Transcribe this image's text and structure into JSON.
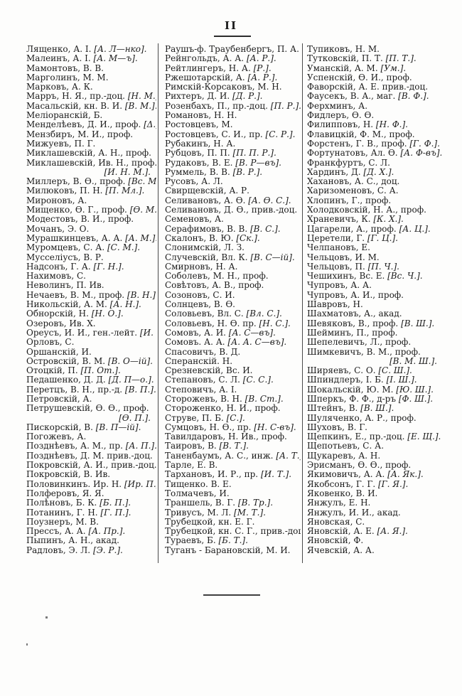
{
  "page": {
    "header": "II",
    "columns": [
      {
        "entries": [
          {
            "t": "Лященко, А. І. ",
            "b": "[А. Л—нко]."
          },
          {
            "t": "Малеинъ, А. І. ",
            "b": "[А. М—ъ]."
          },
          {
            "t": "Мамонтовъ, В. В."
          },
          {
            "t": "Марголинъ, М. М."
          },
          {
            "t": "Марковъ, А. К."
          },
          {
            "t": "Марръ, Н. Я., пр.-доц. ",
            "b": "[Н. М.]."
          },
          {
            "t": "Масальскій, кн. В. И. ",
            "b": "[В. М.]."
          },
          {
            "t": "Меліоранскій, Б."
          },
          {
            "t": "Менделѣевъ, Д. И., проф. ",
            "b": "[Δ.]."
          },
          {
            "t": "Мензбиръ, М. И., проф."
          },
          {
            "t": "Мижуевъ, П. Г."
          },
          {
            "t": "Миклашевскій, А. Н., проф."
          },
          {
            "t": "Миклашевскій, Ив. Н., проф."
          },
          {
            "t": "",
            "b": "[И. Н. М.].",
            "r": true
          },
          {
            "t": "Миллеръ, В. Ѳ., проф. ",
            "b": "[Вс. М.]."
          },
          {
            "t": "Милюковъ, П. Н. ",
            "b": "[П. Мл.]."
          },
          {
            "t": "Мироновъ, А."
          },
          {
            "t": "Мищенко, Ѳ. Г., проф. ",
            "b": "[Ѳ. М.]."
          },
          {
            "t": "Модестовъ, В. И., проф."
          },
          {
            "t": "Мочанъ, Э. О."
          },
          {
            "t": "Мурашкинцевъ, А. А. ",
            "b": "[А. М.]."
          },
          {
            "t": "Муромцевъ, С. А. ",
            "b": "[С. М.]."
          },
          {
            "t": "Мусселіусъ, В. Р."
          },
          {
            "t": "Надсонъ, Г. А. ",
            "b": "[Г. Н.]."
          },
          {
            "t": "Нахимовъ, С."
          },
          {
            "t": "Неволинъ, П. Ив."
          },
          {
            "t": "Нечаевъ, В. М., проф. ",
            "b": "[В. Н.]."
          },
          {
            "t": "Никольскій, А. М. ",
            "b": "[А. Н.]."
          },
          {
            "t": "Обнорскій, Н. ",
            "b": "[Н. О.]."
          },
          {
            "t": "Озеровъ, Ив. Х."
          },
          {
            "t": "Ореусъ, И. И., ген.-лейт. ",
            "b": "[И. О.]."
          },
          {
            "t": "Орловъ, С."
          },
          {
            "t": "Оршанскій, И."
          },
          {
            "t": "Островскій, В. М. ",
            "b": "[В. О—ій]."
          },
          {
            "t": "Отоцкій, П. ",
            "b": "[П. От.]."
          },
          {
            "t": "Педашенко, Д. Д. ",
            "b": "[Д. П—о.]."
          },
          {
            "t": "Перетцъ, В. Н., пр.-д. ",
            "b": "[В. П.]."
          },
          {
            "t": "Петровскій, А."
          },
          {
            "t": "Петрушевскій, Ѳ. Ѳ., проф."
          },
          {
            "t": "",
            "b": "[Ѳ. П.].",
            "r": true
          },
          {
            "t": "Пискорскій, В. ",
            "b": "[В. П—ій]."
          },
          {
            "t": "Погожевъ, А."
          },
          {
            "t": "Позднѣевъ, А. М., пр. ",
            "b": "[А. П.]."
          },
          {
            "t": "Позднѣевъ, Д. М. прив.-доц."
          },
          {
            "t": "Покровскій, А. И., прив.-доц."
          },
          {
            "t": "Покровскій, В. Ив."
          },
          {
            "t": "Половинкинъ. Ир. Н. ",
            "b": "[Ир. П.]."
          },
          {
            "t": "Полферовъ, Я. Я."
          },
          {
            "t": "Полѣновъ, Б. К. ",
            "b": "[Б. П.]."
          },
          {
            "t": "Потанинъ, Г. Н. ",
            "b": "[Г. П.]."
          },
          {
            "t": "Поузнеръ, М. В."
          },
          {
            "t": "Прессъ, А. А. ",
            "b": "[А. Пр.]."
          },
          {
            "t": "Пыпинъ, А. Н., акад."
          },
          {
            "t": "Радловъ, Э. Л. ",
            "b": "[Э. Р.]."
          }
        ]
      },
      {
        "entries": [
          {
            "t": "Раушъ-ф. Траубенбергъ, П. А."
          },
          {
            "t": "Рейнгольдъ, А. А. ",
            "b": "[А. Р.]."
          },
          {
            "t": "Рейтлингеръ, Н. А. ",
            "b": "[Р.]."
          },
          {
            "t": "Ржешотарскій, А. ",
            "b": "[А. Р.]."
          },
          {
            "t": "Римскій-Корсаковъ, М. Н."
          },
          {
            "t": "Рихтеръ, Д. И. ",
            "b": "[Д. Р.]."
          },
          {
            "t": "Розенбахъ, П., пр.-доц. ",
            "b": "[П. Р.]."
          },
          {
            "t": "Романовъ, Н. Н."
          },
          {
            "t": "Ростовцевъ, М."
          },
          {
            "t": "Ростовцевъ, С. И., пр. ",
            "b": "[С. Р.]."
          },
          {
            "t": "Рубакинъ, Н. А."
          },
          {
            "t": "Рубцовъ, П. П. ",
            "b": "[П. П. Р.]."
          },
          {
            "t": "Рудаковъ, В. Е. ",
            "b": "[В. Р—въ]."
          },
          {
            "t": "Руммель, В. В. ",
            "b": "[В. Р.]."
          },
          {
            "t": "Русовъ, А. Л."
          },
          {
            "t": "Свирщевскій, А. Р."
          },
          {
            "t": "Селивановъ, А. Ѳ. ",
            "b": "[А. Ѳ. С.]."
          },
          {
            "t": "Селивановъ, Д. Ѳ., прив.-доц."
          },
          {
            "t": "Семеновъ, А."
          },
          {
            "t": "Серафимовъ, В. В. ",
            "b": "[В. С.]."
          },
          {
            "t": "Скалонъ, В. Ю. ",
            "b": "[Ск.]."
          },
          {
            "t": "Слонимскій, Л. З."
          },
          {
            "t": "Случевскій, Вл. К. ",
            "b": "[В. С—ій]."
          },
          {
            "t": "Смирновъ, Н. А."
          },
          {
            "t": "Соболевъ, М. Н., проф."
          },
          {
            "t": "Совѣтовъ, А. В., проф."
          },
          {
            "t": "Созоновъ, С. И."
          },
          {
            "t": "Солнцевъ, В. Ѳ."
          },
          {
            "t": "Соловьевъ, Вл. С. ",
            "b": "[Вл. С.]."
          },
          {
            "t": "Соловьевъ, Н. Ѳ. пр. ",
            "b": "[Н. С.]."
          },
          {
            "t": "Сомовъ, А. И. ",
            "b": "[А. С—въ]."
          },
          {
            "t": "Сомовъ. А. А. ",
            "b": "[А. А. С—въ]."
          },
          {
            "t": "Спасовичъ, В. Д."
          },
          {
            "t": "Сперанскій. Н."
          },
          {
            "t": "Срезневскій, Вс. И."
          },
          {
            "t": "Степановъ, С. Л. ",
            "b": "[С. С.]."
          },
          {
            "t": "Степовичъ, А. І."
          },
          {
            "t": "Сторожевъ, В. Н. ",
            "b": "[В. Ст.]."
          },
          {
            "t": "Стороженко, Н. И., проф."
          },
          {
            "t": "Струве, П. Б. ",
            "b": "[С.]."
          },
          {
            "t": "Сумцовъ, Н. Ѳ., пр. ",
            "b": "[Н. С-въ]."
          },
          {
            "t": "Тавилдаровъ, Н. Ив., проф."
          },
          {
            "t": "Таировъ, В. ",
            "b": "[В. Т.]."
          },
          {
            "t": "Таненбаумъ, А. С., инж. ",
            "b": "[А. Т.]."
          },
          {
            "t": "Тарле, Е. В."
          },
          {
            "t": "Тархановъ, И. Р., пр. ",
            "b": "[И. Т.]."
          },
          {
            "t": "Тищенко. В. Е."
          },
          {
            "t": "Толмачевъ, И."
          },
          {
            "t": "Траншель, В. Г. ",
            "b": "[В. Тр.]."
          },
          {
            "t": "Тривусъ, М. Л. ",
            "b": "[М. Т.]."
          },
          {
            "t": "Трубецкой, кн. Е. Г."
          },
          {
            "t": "Трубецкой, кн. С. Г., прив.-доц."
          },
          {
            "t": "Тураевъ, Б. ",
            "b": "[Б. Т.]."
          },
          {
            "t": "Туганъ - Барановскій, М. И."
          }
        ]
      },
      {
        "entries": [
          {
            "t": "Тупиковъ, Н. М."
          },
          {
            "t": "Тутковскій, П. Т. ",
            "b": "[П. Т.]."
          },
          {
            "t": "Уманскій, А. М. ",
            "b": "[Ум.]."
          },
          {
            "t": "Успенскій, Ѳ. И., проф."
          },
          {
            "t": "Фаворскій, А. Е. прив.-доц."
          },
          {
            "t": "Фаусекъ, В. А., маг. ",
            "b": "[В. Ф.]."
          },
          {
            "t": "Ферхминъ, А."
          },
          {
            "t": "Фидлеръ, Ѳ. Ѳ."
          },
          {
            "t": "Филипповъ, Н. ",
            "b": "[Н. Ф.]."
          },
          {
            "t": "Флавицкій, Ф. М., проф."
          },
          {
            "t": "Форстенъ, Г. В., проф. ",
            "b": "[Г. Ф.]."
          },
          {
            "t": "Фортунатовъ, Ал. Ѳ. ",
            "b": "[А. Ф-въ]."
          },
          {
            "t": "Франкфуртъ, С. Л."
          },
          {
            "t": "Хардинъ, Д. ",
            "b": "[Д. Х.]."
          },
          {
            "t": "Хахановъ, А. С., доц."
          },
          {
            "t": "Харизоменовъ, С. А."
          },
          {
            "t": "Хлопинъ, Г., проф."
          },
          {
            "t": "Холодковскій, Н. А., проф."
          },
          {
            "t": "Храневичъ, К. ",
            "b": "[К. Х.]."
          },
          {
            "t": "Цагарели, А., проф. ",
            "b": "[А. Ц.]."
          },
          {
            "t": "Церетели, Г. ",
            "b": "[Г. Ц.]."
          },
          {
            "t": "Челпановъ, Е."
          },
          {
            "t": "Чельцовъ, И. М."
          },
          {
            "t": "Чельцовъ, П. ",
            "b": "[П. Ч.]."
          },
          {
            "t": "Чешихинъ, Вс. Е. ",
            "b": "[Вс. Ч.]."
          },
          {
            "t": "Чупровъ, А. А."
          },
          {
            "t": "Чупровъ, А. И., проф."
          },
          {
            "t": "Шавровъ, Н."
          },
          {
            "t": "Шахматовъ, А., акад."
          },
          {
            "t": "Шевяковъ, В., проф. ",
            "b": "[В. Ш.]."
          },
          {
            "t": "Шейминъ, П., проф."
          },
          {
            "t": "Шепелевичъ, Л., проф."
          },
          {
            "t": "Шимкевичъ, В. М., проф."
          },
          {
            "t": "",
            "b": "[В. М. Ш.].",
            "r": true
          },
          {
            "t": "Ширяевъ, С. О. ",
            "b": "[С. Ш.]."
          },
          {
            "t": "Шпиндлеръ, І. Б. ",
            "b": "[І. Ш.]."
          },
          {
            "t": "Шокальскій, Ю. М. ",
            "b": "[Ю. Ш.]."
          },
          {
            "t": "Шперкъ, Ф. Ф., д-ръ ",
            "b": "[Ф. Ш.]."
          },
          {
            "t": "Штейнъ, В. ",
            "b": "[В. Ш.]."
          },
          {
            "t": "Шуляченко, А. Р., проф."
          },
          {
            "t": "Шуховъ, В. Г."
          },
          {
            "t": "Щепкинъ, Е., пр.-доц. ",
            "b": "[Е. Щ.]."
          },
          {
            "t": "Щепотьевъ, С. А."
          },
          {
            "t": "Щукаревъ, А. Н."
          },
          {
            "t": "Эрисманъ, Ѳ. Ѳ., проф."
          },
          {
            "t": "Якимовичъ, А. А. ",
            "b": "[А. Як.]."
          },
          {
            "t": "Якобсонъ, Г. Г. ",
            "b": "[Г. Я.]."
          },
          {
            "t": "Яковенко, В. И."
          },
          {
            "t": "Янжулъ, Е. Н."
          },
          {
            "t": "Янжулъ, И. И., акад."
          },
          {
            "t": "Яновская, С."
          },
          {
            "t": "Яновскій, А. Е. ",
            "b": "[А. Я.]."
          },
          {
            "t": "Яновскій, Ф."
          },
          {
            "t": "Ячевскій, А. А."
          }
        ]
      }
    ]
  }
}
